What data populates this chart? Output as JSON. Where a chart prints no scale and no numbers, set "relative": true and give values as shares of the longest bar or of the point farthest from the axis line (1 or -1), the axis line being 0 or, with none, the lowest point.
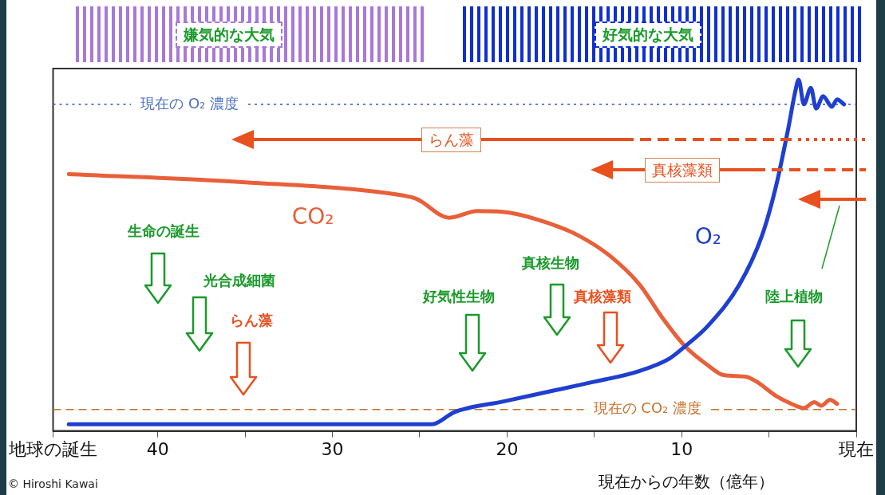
{
  "chart_data": {
    "type": "line",
    "relative": true,
    "xlabel": "現在からの年数（億年）",
    "xlim": [
      46,
      0
    ],
    "xticks": [
      {
        "value": 46,
        "label": "地球の誕生"
      },
      40,
      {
        "value": 35,
        "label": null
      },
      30,
      {
        "value": 25,
        "label": null
      },
      20,
      {
        "value": 15,
        "label": null
      },
      10,
      {
        "value": 5,
        "label": null
      },
      {
        "value": 0,
        "label": "現在"
      }
    ],
    "legend": false,
    "grid": false,
    "marker": "none",
    "line_style": "solid",
    "series": [
      {
        "name": "O₂",
        "color": "#1f3fd0",
        "x": [
          45.1,
          24.3,
          23,
          20.2,
          17.6,
          15,
          12.4,
          10.7,
          9.8,
          8.5,
          6.7,
          5.4,
          4.6,
          3.9,
          3.5,
          3.3,
          3.0,
          2.6,
          2.3,
          1.9,
          1.4,
          1.1,
          0.7
        ],
        "values": [
          0.019,
          0.019,
          0.054,
          0.084,
          0.112,
          0.14,
          0.171,
          0.206,
          0.241,
          0.299,
          0.416,
          0.556,
          0.696,
          0.86,
          0.965,
          1,
          0.93,
          0.977,
          0.918,
          0.953,
          0.923,
          0.944,
          0.93
        ]
      },
      {
        "name": "CO₂",
        "color": "#e8603a",
        "x": [
          45.1,
          35,
          26.3,
          25.2,
          23.3,
          21.7,
          19.8,
          17.6,
          15.9,
          14.1,
          12.4,
          11.1,
          9.8,
          8.5,
          7.6,
          6.3,
          5.7,
          4.6,
          3.7,
          3.0,
          2.4,
          2.0,
          1.5,
          1.1
        ],
        "values": [
          0.731,
          0.708,
          0.673,
          0.661,
          0.607,
          0.626,
          0.621,
          0.591,
          0.556,
          0.498,
          0.416,
          0.322,
          0.241,
          0.187,
          0.159,
          0.154,
          0.14,
          0.1,
          0.077,
          0.065,
          0.082,
          0.072,
          0.089,
          0.077
        ]
      }
    ],
    "ref_lines": [
      {
        "axis": "y",
        "value": 0.93,
        "label": "現在の O₂ 濃度",
        "color": "#4a6fc0",
        "line_style": "dotted"
      },
      {
        "axis": "y",
        "value": 0.061,
        "label": "現在の CO₂ 濃度",
        "color": "#c8702a",
        "line_style": "dashed"
      }
    ],
    "annotations": [
      "嫌気的な大気",
      "好気的な大気",
      "らん藻",
      "真核藻類",
      "生命の誕生",
      "光合成細菌",
      "らん藻",
      "好気性生物",
      "真核生物",
      "真核藻類",
      "陸上植物",
      "© Hiroshi Kawai"
    ]
  }
}
